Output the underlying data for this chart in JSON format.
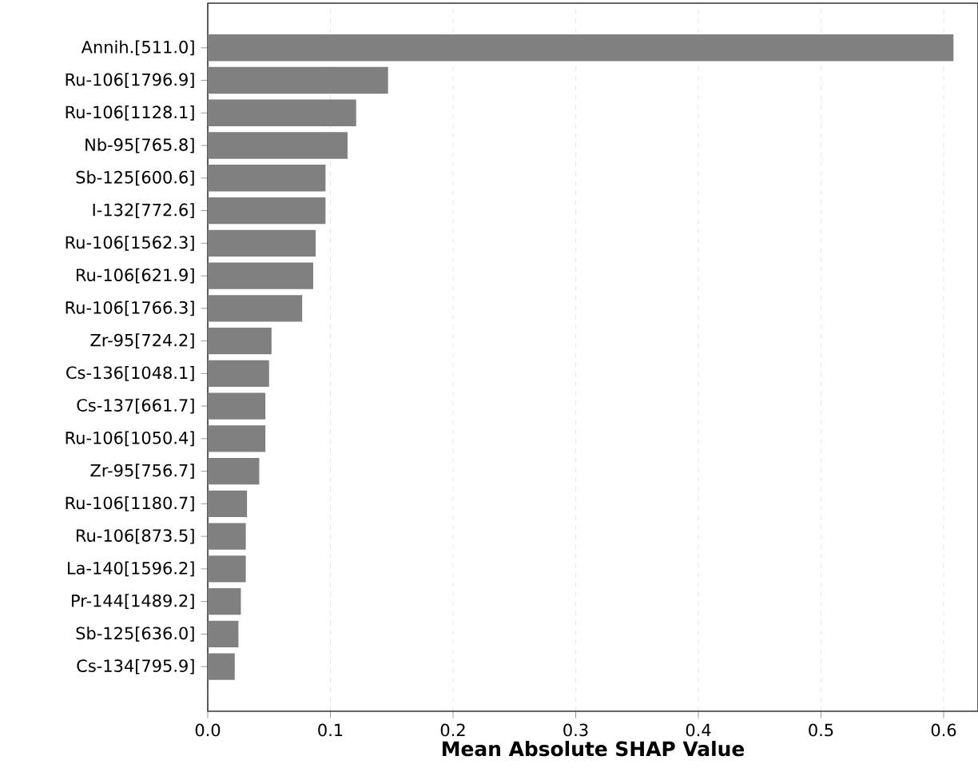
{
  "chart_data": {
    "type": "bar",
    "orientation": "horizontal",
    "xlabel": "Mean Absolute SHAP Value",
    "categories": [
      "Annih.[511.0]",
      "Ru-106[1796.9]",
      "Ru-106[1128.1]",
      "Nb-95[765.8]",
      "Sb-125[600.6]",
      "I-132[772.6]",
      "Ru-106[1562.3]",
      "Ru-106[621.9]",
      "Ru-106[1766.3]",
      "Zr-95[724.2]",
      "Cs-136[1048.1]",
      "Cs-137[661.7]",
      "Ru-106[1050.4]",
      "Zr-95[756.7]",
      "Ru-106[1180.7]",
      "Ru-106[873.5]",
      "La-140[1596.2]",
      "Pr-144[1489.2]",
      "Sb-125[636.0]",
      "Cs-134[795.9]"
    ],
    "values": [
      0.608,
      0.147,
      0.121,
      0.114,
      0.096,
      0.096,
      0.088,
      0.086,
      0.077,
      0.052,
      0.05,
      0.047,
      0.047,
      0.042,
      0.032,
      0.031,
      0.031,
      0.027,
      0.025,
      0.022
    ],
    "color": "#808080",
    "xlim": [
      0,
      0.628
    ],
    "xticks": [
      {
        "value": 0,
        "label": "0.0"
      },
      0.1,
      0.2,
      0.3,
      0.4,
      0.5,
      0.6
    ],
    "grid": "x"
  }
}
